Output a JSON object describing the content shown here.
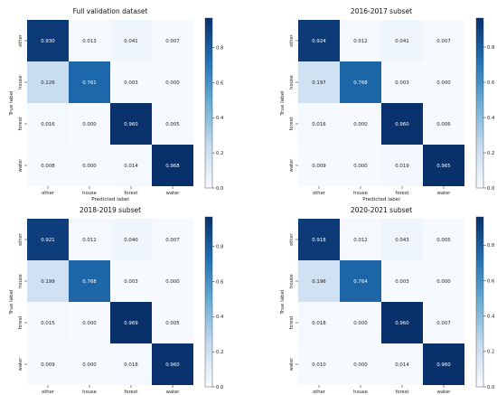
{
  "chart_data": [
    {
      "type": "heatmap",
      "title": "Full validation dataset",
      "xlabel": "Predicted label",
      "ylabel": "True label",
      "x_categories": [
        "other",
        "house",
        "forest",
        "water"
      ],
      "y_categories": [
        "other",
        "house",
        "forest",
        "water"
      ],
      "values": [
        [
          0.93,
          0.013,
          0.041,
          0.007
        ],
        [
          0.226,
          0.761,
          0.003,
          0.0
        ],
        [
          0.016,
          0.0,
          0.96,
          0.005
        ],
        [
          0.008,
          0.0,
          0.014,
          0.968
        ]
      ],
      "value_labels": [
        [
          "0.930",
          "0.013",
          "0.041",
          "0.007"
        ],
        [
          "0.226",
          "0.761",
          "0.003",
          "0.000"
        ],
        [
          "0.016",
          "0.000",
          "0.960",
          "0.005"
        ],
        [
          "0.008",
          "0.000",
          "0.014",
          "0.968"
        ]
      ],
      "colorbar": {
        "range": [
          0.0,
          0.968
        ],
        "ticks": [
          0.0,
          0.2,
          0.4,
          0.6,
          0.8
        ],
        "tick_labels": [
          "0.0",
          "0.2",
          "0.4",
          "0.6",
          "0.8"
        ]
      }
    },
    {
      "type": "heatmap",
      "title": "2016-2017 subset",
      "xlabel": "Predicted label",
      "ylabel": "True label",
      "x_categories": [
        "other",
        "house",
        "forest",
        "water"
      ],
      "y_categories": [
        "other",
        "house",
        "forest",
        "water"
      ],
      "values": [
        [
          0.924,
          0.012,
          0.041,
          0.007
        ],
        [
          0.197,
          0.768,
          0.003,
          0.0
        ],
        [
          0.016,
          0.0,
          0.96,
          0.006
        ],
        [
          0.009,
          0.0,
          0.019,
          0.965
        ]
      ],
      "value_labels": [
        [
          "0.924",
          "0.012",
          "0.041",
          "0.007"
        ],
        [
          "0.197",
          "0.768",
          "0.003",
          "0.000"
        ],
        [
          "0.016",
          "0.000",
          "0.960",
          "0.006"
        ],
        [
          "0.009",
          "0.000",
          "0.019",
          "0.965"
        ]
      ],
      "colorbar": {
        "range": [
          0.0,
          0.965
        ],
        "ticks": [
          0.0,
          0.2,
          0.4,
          0.6,
          0.8
        ],
        "tick_labels": [
          "0.0",
          "0.2",
          "0.4",
          "0.6",
          "0.8"
        ]
      }
    },
    {
      "type": "heatmap",
      "title": "2018-2019 subset",
      "xlabel": "Predicted label",
      "ylabel": "True label",
      "x_categories": [
        "other",
        "house",
        "forest",
        "water"
      ],
      "y_categories": [
        "other",
        "house",
        "forest",
        "water"
      ],
      "values": [
        [
          0.921,
          0.012,
          0.04,
          0.007
        ],
        [
          0.199,
          0.768,
          0.003,
          0.0
        ],
        [
          0.015,
          0.0,
          0.969,
          0.005
        ],
        [
          0.009,
          0.0,
          0.018,
          0.96
        ]
      ],
      "value_labels": [
        [
          "0.921",
          "0.012",
          "0.040",
          "0.007"
        ],
        [
          "0.199",
          "0.768",
          "0.003",
          "0.000"
        ],
        [
          "0.015",
          "0.000",
          "0.969",
          "0.005"
        ],
        [
          "0.009",
          "0.000",
          "0.018",
          "0.960"
        ]
      ],
      "colorbar": {
        "range": [
          0.0,
          0.969
        ],
        "ticks": [
          0.0,
          0.2,
          0.4,
          0.6,
          0.8
        ],
        "tick_labels": [
          "0.0",
          "0.2",
          "0.4",
          "0.6",
          "0.8"
        ]
      }
    },
    {
      "type": "heatmap",
      "title": "2020-2021 subset",
      "xlabel": "Predicted label",
      "ylabel": "True label",
      "x_categories": [
        "other",
        "house",
        "forest",
        "water"
      ],
      "y_categories": [
        "other",
        "house",
        "forest",
        "water"
      ],
      "values": [
        [
          0.918,
          0.012,
          0.043,
          0.005
        ],
        [
          0.196,
          0.764,
          0.003,
          0.0
        ],
        [
          0.018,
          0.0,
          0.96,
          0.007
        ],
        [
          0.01,
          0.0,
          0.014,
          0.96
        ]
      ],
      "value_labels": [
        [
          "0.918",
          "0.012",
          "0.043",
          "0.005"
        ],
        [
          "0.196",
          "0.764",
          "0.003",
          "0.000"
        ],
        [
          "0.018",
          "0.000",
          "0.960",
          "0.007"
        ],
        [
          "0.010",
          "0.000",
          "0.014",
          "0.960"
        ]
      ],
      "colorbar": {
        "range": [
          0.0,
          0.96
        ],
        "ticks": [
          0.0,
          0.2,
          0.4,
          0.6,
          0.8
        ],
        "tick_labels": [
          "0.0",
          "0.2",
          "0.4",
          "0.6",
          "0.8"
        ]
      }
    }
  ],
  "colors": {
    "colormap": "Blues",
    "scale_low": "#f7fbff",
    "scale_mid_1": "#c6dbef",
    "scale_mid_2": "#6baed6",
    "scale_mid_3": "#2171b5",
    "scale_high": "#08306b",
    "text_on_light": "#222222",
    "text_on_dark": "#ffffff"
  }
}
